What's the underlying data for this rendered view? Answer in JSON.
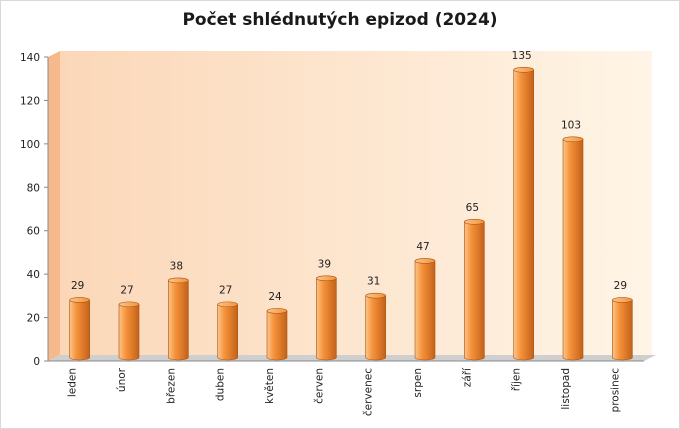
{
  "chart_data": {
    "type": "bar",
    "title": "Počet shlédnutých epizod (2024)",
    "categories": [
      "leden",
      "únor",
      "březen",
      "duben",
      "květen",
      "červen",
      "červenec",
      "srpen",
      "září",
      "říjen",
      "listopad",
      "prosinec"
    ],
    "values": [
      29,
      27,
      38,
      27,
      24,
      39,
      31,
      47,
      65,
      135,
      103,
      29
    ],
    "data_labels": [
      "29",
      "27",
      "38",
      "27",
      "24",
      "39",
      "31",
      "47",
      "65",
      "135",
      "103",
      "29"
    ],
    "ylim": [
      0,
      140
    ],
    "yticks": [
      "0",
      "20",
      "40",
      "60",
      "80",
      "100",
      "120",
      "140"
    ],
    "grid": false,
    "legend": "none",
    "colors": {
      "bar_light": "#fbc58a",
      "bar_mid": "#f5923a",
      "bar_dark": "#c2621a",
      "wall_left": "#fbd7b8",
      "wall_right": "#fff5e6",
      "floor": "#cfcfcf"
    }
  }
}
